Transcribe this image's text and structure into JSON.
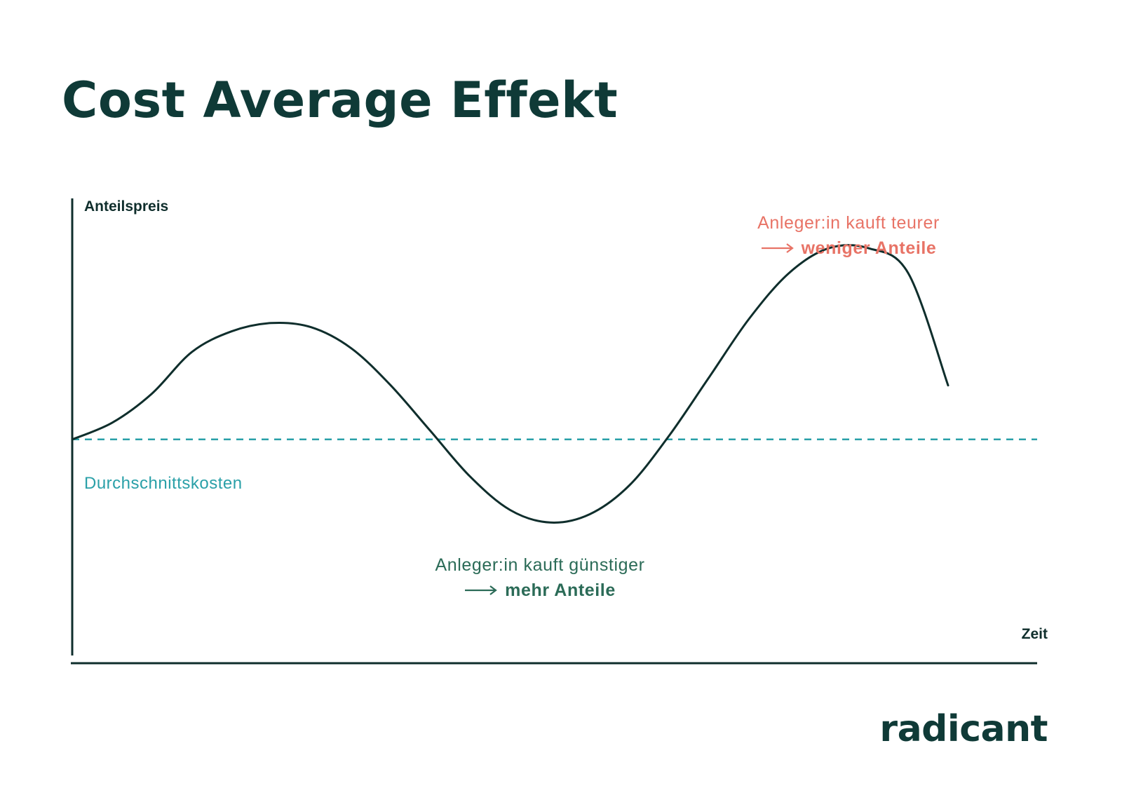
{
  "title": "Cost Average Effekt",
  "chart_data": {
    "type": "line",
    "ylabel": "Anteilspreis",
    "xlabel": "Zeit",
    "average_label": "Durchschnittskosten",
    "series": [
      {
        "values": [
          0.0,
          0.2,
          0.55,
          1.05,
          1.3,
          1.4,
          1.35,
          1.1,
          0.65,
          0.1,
          -0.45,
          -0.85,
          -1.0,
          -0.9,
          -0.55,
          0.05,
          0.75,
          1.45,
          2.0,
          2.3,
          2.3,
          2.0,
          0.65
        ]
      }
    ],
    "average_value": 0.0,
    "ylim": [
      -2.6,
      2.9
    ],
    "annotations": [
      {
        "text": "Anleger:in kauft teurer",
        "emphasis": "weniger Anteile",
        "color": "#e87366"
      },
      {
        "text": "Anleger:in kauft günstiger",
        "emphasis": "mehr Anteile",
        "color": "#2b6b57"
      }
    ]
  },
  "logo": "radicant",
  "colors": {
    "curve": "#0f2e2c",
    "average_line": "#2aa0a8",
    "high": "#e87366",
    "low": "#2b6b57"
  }
}
